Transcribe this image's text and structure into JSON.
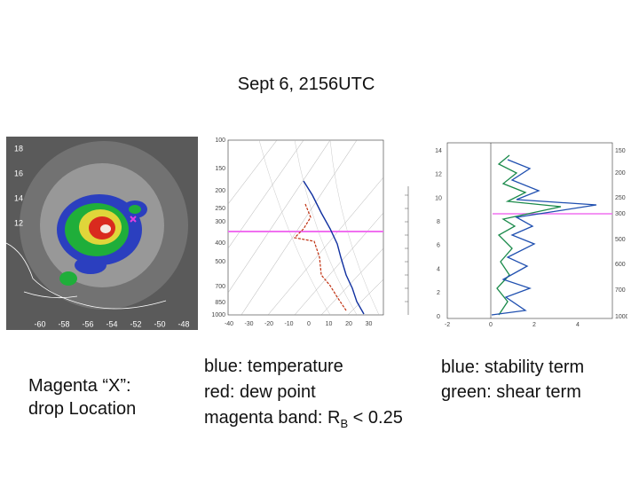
{
  "title": "Sept 6,  2156UTC",
  "satellite": {
    "lat_labels": [
      "18",
      "16",
      "14",
      "12"
    ],
    "lon_labels": [
      "-60",
      "-58",
      "-56",
      "-54",
      "-52",
      "-50",
      "-48"
    ],
    "caption": [
      "Magenta “X”:",
      "drop Location"
    ]
  },
  "skewt": {
    "pressure_labels": [
      "100",
      "150",
      "200",
      "250",
      "300",
      "400",
      "500",
      "700",
      "850",
      "1000"
    ],
    "temp_labels": [
      "-40",
      "-30",
      "-20",
      "-10",
      "0",
      "10",
      "20",
      "30"
    ],
    "legend": [
      "blue: temperature",
      "red: dew point"
    ],
    "band_note": {
      "text": "magenta band: R",
      "sub": "B",
      "rest": " < 0.25"
    }
  },
  "profile": {
    "height_labels": [
      "0",
      "2",
      "4",
      "6",
      "8",
      "10",
      "12",
      "14"
    ],
    "x_labels": [
      "-2",
      "0",
      "2",
      "4"
    ],
    "right_labels": [
      "150",
      "200",
      "250",
      "300",
      "500",
      "600",
      "700",
      "1000"
    ],
    "legend": [
      "blue: stability term",
      "green: shear term"
    ]
  }
}
